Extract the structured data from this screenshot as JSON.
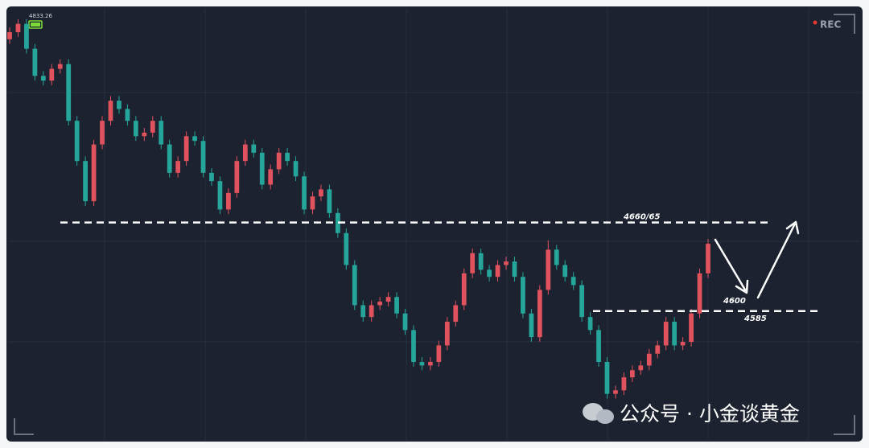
{
  "chart_data": {
    "type": "candlestick",
    "price_label": "4833.26",
    "recording_label": "REC",
    "up_color": "#e0525e",
    "down_color": "#26a69a",
    "ylim": [
      4476,
      4838
    ],
    "open": [
      4815,
      4821,
      4828,
      4807,
      4784,
      4780,
      4790,
      4794,
      4746,
      4712,
      4678,
      4726,
      4746,
      4763,
      4756,
      4746,
      4733,
      4736,
      4746,
      4726,
      4702,
      4712,
      4733,
      4729,
      4702,
      4695,
      4671,
      4685,
      4712,
      4726,
      4719,
      4692,
      4705,
      4719,
      4712,
      4699,
      4671,
      4682,
      4688,
      4668,
      4651,
      4624,
      4590,
      4580,
      4590,
      4593,
      4597,
      4583,
      4569,
      4542,
      4539,
      4542,
      4556,
      4576,
      4590,
      4617,
      4634,
      4620,
      4614,
      4624,
      4627,
      4614,
      4583,
      4563,
      4603,
      4637,
      4624,
      4614,
      4607,
      4580,
      4569,
      4542,
      4515,
      4518,
      4529,
      4535,
      4539,
      4549,
      4556,
      4576,
      4556,
      4559,
      4583,
      4617
    ],
    "high": [
      4825,
      4832,
      4832,
      4811,
      4788,
      4794,
      4798,
      4798,
      4750,
      4716,
      4730,
      4750,
      4767,
      4767,
      4760,
      4750,
      4740,
      4750,
      4750,
      4730,
      4716,
      4737,
      4737,
      4733,
      4706,
      4699,
      4689,
      4716,
      4730,
      4730,
      4723,
      4709,
      4723,
      4723,
      4716,
      4703,
      4686,
      4692,
      4692,
      4672,
      4655,
      4628,
      4594,
      4594,
      4597,
      4601,
      4601,
      4587,
      4573,
      4546,
      4546,
      4560,
      4580,
      4594,
      4621,
      4638,
      4638,
      4624,
      4628,
      4631,
      4631,
      4618,
      4587,
      4607,
      4645,
      4641,
      4628,
      4618,
      4611,
      4584,
      4573,
      4546,
      4522,
      4533,
      4539,
      4543,
      4553,
      4560,
      4580,
      4580,
      4563,
      4587,
      4621,
      4646
    ],
    "low": [
      4811,
      4817,
      4803,
      4780,
      4776,
      4776,
      4786,
      4742,
      4708,
      4674,
      4674,
      4722,
      4742,
      4752,
      4742,
      4729,
      4729,
      4732,
      4722,
      4698,
      4698,
      4708,
      4725,
      4698,
      4691,
      4667,
      4667,
      4681,
      4708,
      4715,
      4688,
      4688,
      4701,
      4708,
      4695,
      4667,
      4667,
      4678,
      4664,
      4647,
      4620,
      4586,
      4576,
      4576,
      4586,
      4589,
      4579,
      4565,
      4538,
      4535,
      4535,
      4538,
      4552,
      4572,
      4586,
      4613,
      4616,
      4610,
      4610,
      4620,
      4610,
      4579,
      4559,
      4559,
      4599,
      4620,
      4610,
      4603,
      4576,
      4565,
      4538,
      4511,
      4511,
      4514,
      4525,
      4531,
      4535,
      4545,
      4552,
      4552,
      4552,
      4555,
      4579,
      4613
    ],
    "close": [
      4821,
      4828,
      4807,
      4784,
      4780,
      4790,
      4794,
      4746,
      4712,
      4678,
      4726,
      4746,
      4763,
      4756,
      4746,
      4733,
      4736,
      4746,
      4726,
      4702,
      4712,
      4733,
      4729,
      4702,
      4695,
      4671,
      4685,
      4712,
      4726,
      4719,
      4692,
      4705,
      4719,
      4712,
      4699,
      4671,
      4682,
      4688,
      4668,
      4651,
      4624,
      4590,
      4580,
      4590,
      4593,
      4597,
      4583,
      4569,
      4542,
      4539,
      4542,
      4556,
      4576,
      4590,
      4617,
      4634,
      4620,
      4614,
      4624,
      4627,
      4614,
      4583,
      4563,
      4603,
      4637,
      4624,
      4614,
      4607,
      4580,
      4569,
      4542,
      4515,
      4518,
      4529,
      4535,
      4539,
      4549,
      4556,
      4576,
      4556,
      4559,
      4583,
      4617,
      4642
    ],
    "levels": [
      {
        "label": "4660/65",
        "value": 4660
      },
      {
        "label": "4585",
        "value": 4585
      }
    ],
    "target_label": "4600",
    "watermark": "公众号 · 小金谈黄金"
  }
}
